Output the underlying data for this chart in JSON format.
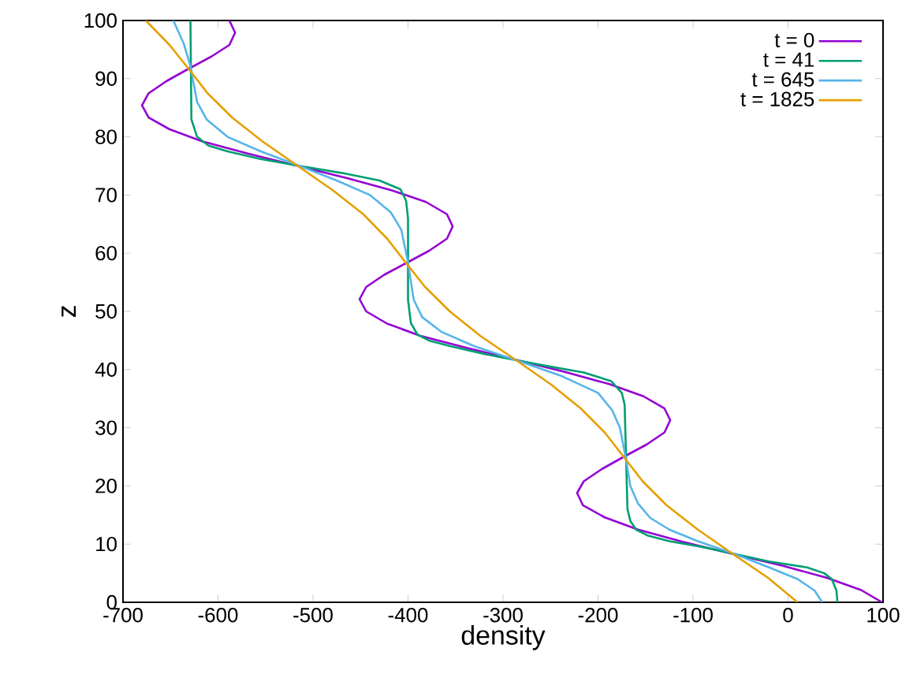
{
  "chart_data": {
    "type": "line",
    "xlabel": "density",
    "ylabel": "z",
    "xlim": [
      -700,
      100
    ],
    "ylim": [
      0,
      100
    ],
    "xticks": [
      -700,
      -600,
      -500,
      -400,
      -300,
      -200,
      -100,
      0,
      100
    ],
    "yticks": [
      0,
      10,
      20,
      30,
      40,
      50,
      60,
      70,
      80,
      90,
      100
    ],
    "legend": "top right",
    "grid": false,
    "marker": "none",
    "line_style": "solid",
    "series": [
      {
        "name": "t = 0",
        "color": "#9400d3",
        "x": [
          99,
          77,
          41,
          -6,
          -58,
          -111,
          -158,
          -193,
          -216,
          -222,
          -215,
          -196,
          -173,
          -149,
          -130,
          -124,
          -130,
          -152,
          -188,
          -235,
          -287,
          -340,
          -387,
          -422,
          -444,
          -451,
          -444,
          -425,
          -402,
          -378,
          -359,
          -353,
          -359,
          -381,
          -417,
          -464,
          -516,
          -568,
          -616,
          -651,
          -673,
          -680,
          -673,
          -654,
          -631,
          -607,
          -588,
          -582,
          -588
        ],
        "values": [
          0,
          2.1,
          4.2,
          6.3,
          8.3,
          10.4,
          12.5,
          14.6,
          16.7,
          18.8,
          20.8,
          22.9,
          25,
          27.1,
          29.2,
          31.3,
          33.3,
          35.4,
          37.5,
          39.6,
          41.7,
          43.8,
          45.8,
          47.9,
          50,
          52.1,
          54.2,
          56.3,
          58.3,
          60.4,
          62.5,
          64.6,
          66.7,
          68.8,
          70.8,
          72.9,
          75,
          77.1,
          79.2,
          81.3,
          83.3,
          85.4,
          87.5,
          89.6,
          91.7,
          93.8,
          95.8,
          97.9,
          100
        ]
      },
      {
        "name": "t = 41",
        "color": "#009e73",
        "x": [
          52,
          51,
          46,
          38,
          20,
          -20,
          -56,
          -90,
          -125,
          -148,
          -160,
          -166,
          -169,
          -172,
          -175,
          -186,
          -215,
          -250,
          -286,
          -320,
          -355,
          -378,
          -390,
          -397,
          -400,
          -400,
          -402,
          -408,
          -430,
          -470,
          -514,
          -555,
          -590,
          -610,
          -622,
          -628,
          -629
        ],
        "values": [
          0,
          2,
          4,
          5,
          6,
          7,
          8.3,
          9.5,
          10.5,
          11.5,
          12.5,
          14,
          16,
          34,
          36,
          38,
          39.5,
          40.5,
          41.6,
          42.7,
          44,
          45,
          46,
          48,
          52,
          66,
          69,
          71,
          72.5,
          73.8,
          75,
          76.2,
          77.5,
          78.5,
          80,
          83,
          100
        ]
      },
      {
        "name": "t = 645",
        "color": "#56b4e9",
        "x": [
          36,
          28,
          10,
          -20,
          -56,
          -95,
          -125,
          -145,
          -158,
          -166,
          -171,
          -177,
          -185,
          -200,
          -240,
          -286,
          -330,
          -365,
          -385,
          -394,
          -400,
          -407,
          -418,
          -440,
          -475,
          -514,
          -555,
          -590,
          -612,
          -622,
          -629,
          -636,
          -647
        ],
        "values": [
          0,
          2,
          4,
          6,
          8.3,
          10.5,
          12.5,
          14.5,
          17,
          20,
          25,
          30,
          33,
          36,
          39,
          41.6,
          44,
          46.5,
          49,
          52,
          58.4,
          64,
          67,
          70,
          72.5,
          75,
          77.5,
          80,
          83,
          86,
          92.2,
          96,
          100
        ]
      },
      {
        "name": "t = 1825",
        "color": "#e69f00",
        "x": [
          10,
          -21,
          -58,
          -95,
          -128,
          -153,
          -173,
          -193,
          -218,
          -250,
          -287,
          -324,
          -356,
          -382,
          -402,
          -422,
          -447,
          -479,
          -516,
          -553,
          -585,
          -611,
          -631,
          -651,
          -676
        ],
        "values": [
          0,
          4.2,
          8.3,
          12.5,
          16.7,
          20.8,
          25,
          29.2,
          33.3,
          37.5,
          41.7,
          45.8,
          50,
          54.2,
          58.3,
          62.5,
          66.7,
          70.8,
          75,
          79.2,
          83.3,
          87.5,
          91.7,
          95.8,
          100
        ]
      }
    ]
  }
}
